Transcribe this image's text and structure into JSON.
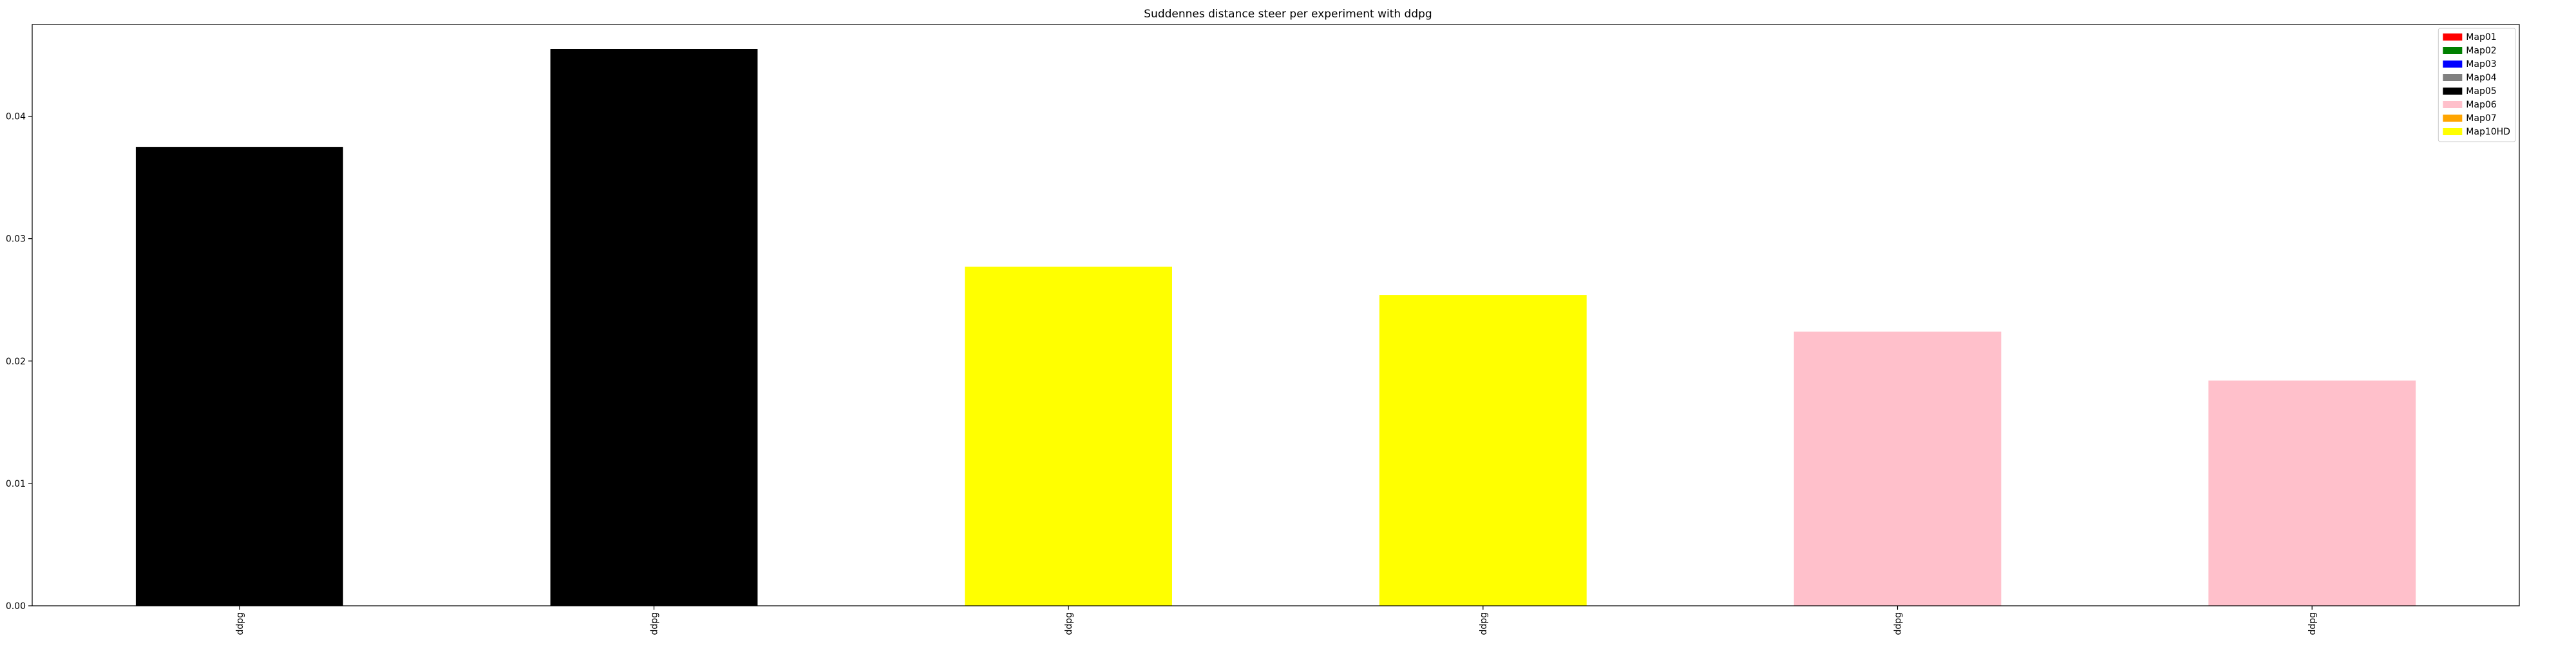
{
  "chart_data": {
    "type": "bar",
    "title": "Suddennes distance steer per experiment with ddpg",
    "xlabel": "",
    "ylabel": "",
    "categories": [
      "ddpg",
      "ddpg",
      "ddpg",
      "ddpg",
      "ddpg",
      "ddpg"
    ],
    "values": [
      0.0375,
      0.0455,
      0.0277,
      0.0254,
      0.0224,
      0.0184
    ],
    "bar_colors": [
      "#000000",
      "#000000",
      "#ffff00",
      "#ffff00",
      "#ffc0cb",
      "#ffc0cb"
    ],
    "ylim": [
      0,
      0.0475
    ],
    "yticks": [
      0.0,
      0.01,
      0.02,
      0.03,
      0.04
    ],
    "ytick_labels": [
      "0.00",
      "0.01",
      "0.02",
      "0.03",
      "0.04"
    ],
    "grid": false,
    "legend": {
      "placement": "top-right",
      "entries": [
        {
          "label": "Map01",
          "color": "#ff0000"
        },
        {
          "label": "Map02",
          "color": "#008000"
        },
        {
          "label": "Map03",
          "color": "#0000ff"
        },
        {
          "label": "Map04",
          "color": "#808080"
        },
        {
          "label": "Map05",
          "color": "#000000"
        },
        {
          "label": "Map06",
          "color": "#ffc0cb"
        },
        {
          "label": "Map07",
          "color": "#ffa500"
        },
        {
          "label": "Map10HD",
          "color": "#ffff00"
        }
      ]
    }
  }
}
